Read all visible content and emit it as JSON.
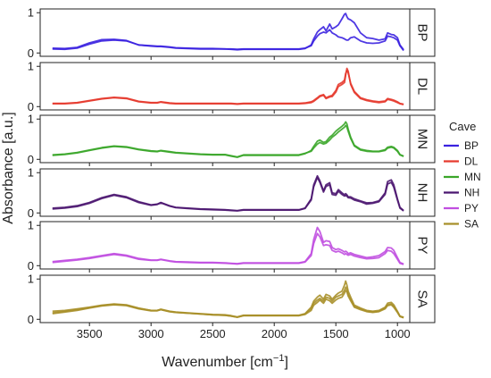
{
  "chart_data": {
    "type": "line",
    "xlabel": "Wavenumber [cm",
    "xlabel_sup": "−1",
    "xlabel_tail": "]",
    "ylabel": "Absorbance [a.u.]",
    "xlim": [
      3900,
      900
    ],
    "ylim": [
      0,
      1
    ],
    "x_ticks": [
      3500,
      3000,
      2500,
      2000,
      1500,
      1000
    ],
    "y_ticks": [
      0,
      1
    ],
    "legend": {
      "title": "Cave",
      "placement": "right"
    },
    "x": [
      3800,
      3700,
      3600,
      3500,
      3400,
      3300,
      3200,
      3100,
      3000,
      2950,
      2920,
      2850,
      2800,
      2700,
      2600,
      2500,
      2400,
      2350,
      2300,
      2250,
      2200,
      2100,
      2000,
      1900,
      1800,
      1750,
      1700,
      1680,
      1650,
      1630,
      1600,
      1580,
      1550,
      1530,
      1500,
      1480,
      1450,
      1430,
      1420,
      1410,
      1400,
      1380,
      1350,
      1300,
      1250,
      1200,
      1150,
      1100,
      1080,
      1050,
      1030,
      1000,
      980,
      950
    ],
    "panels": [
      {
        "name": "BP",
        "color": "#3b22e0",
        "lines": [
          [
            0.1,
            0.09,
            0.12,
            0.22,
            0.3,
            0.32,
            0.3,
            0.2,
            0.17,
            0.16,
            0.16,
            0.14,
            0.12,
            0.11,
            0.1,
            0.1,
            0.1,
            0.09,
            0.08,
            0.09,
            0.09,
            0.09,
            0.09,
            0.09,
            0.09,
            0.11,
            0.2,
            0.35,
            0.52,
            0.58,
            0.65,
            0.55,
            0.72,
            0.6,
            0.65,
            0.7,
            0.85,
            0.96,
            0.98,
            0.9,
            0.85,
            0.82,
            0.75,
            0.5,
            0.38,
            0.36,
            0.32,
            0.35,
            0.5,
            0.46,
            0.45,
            0.38,
            0.2,
            0.08
          ],
          [
            0.12,
            0.11,
            0.14,
            0.25,
            0.33,
            0.34,
            0.31,
            0.2,
            0.18,
            0.17,
            0.17,
            0.15,
            0.13,
            0.12,
            0.11,
            0.11,
            0.1,
            0.1,
            0.09,
            0.1,
            0.1,
            0.1,
            0.1,
            0.1,
            0.1,
            0.12,
            0.18,
            0.3,
            0.42,
            0.48,
            0.52,
            0.5,
            0.58,
            0.5,
            0.45,
            0.4,
            0.38,
            0.35,
            0.33,
            0.32,
            0.32,
            0.38,
            0.4,
            0.3,
            0.25,
            0.24,
            0.25,
            0.3,
            0.42,
            0.4,
            0.38,
            0.32,
            0.18,
            0.06
          ]
        ]
      },
      {
        "name": "DL",
        "color": "#e63a2e",
        "lines": [
          [
            0.07,
            0.07,
            0.09,
            0.14,
            0.19,
            0.22,
            0.2,
            0.12,
            0.09,
            0.09,
            0.11,
            0.08,
            0.07,
            0.07,
            0.07,
            0.07,
            0.07,
            0.07,
            0.06,
            0.07,
            0.07,
            0.07,
            0.07,
            0.07,
            0.07,
            0.08,
            0.1,
            0.13,
            0.2,
            0.25,
            0.28,
            0.2,
            0.24,
            0.25,
            0.36,
            0.5,
            0.55,
            0.6,
            0.78,
            0.95,
            0.88,
            0.55,
            0.35,
            0.2,
            0.15,
            0.12,
            0.1,
            0.12,
            0.18,
            0.16,
            0.14,
            0.1,
            0.07,
            0.05
          ],
          [
            0.08,
            0.08,
            0.1,
            0.15,
            0.2,
            0.23,
            0.21,
            0.13,
            0.1,
            0.1,
            0.12,
            0.09,
            0.08,
            0.08,
            0.08,
            0.08,
            0.08,
            0.08,
            0.07,
            0.08,
            0.08,
            0.08,
            0.08,
            0.08,
            0.08,
            0.09,
            0.12,
            0.15,
            0.22,
            0.27,
            0.3,
            0.22,
            0.26,
            0.28,
            0.4,
            0.55,
            0.6,
            0.66,
            0.82,
            0.9,
            0.84,
            0.58,
            0.38,
            0.22,
            0.17,
            0.14,
            0.12,
            0.14,
            0.2,
            0.18,
            0.16,
            0.12,
            0.08,
            0.06
          ]
        ]
      },
      {
        "name": "MN",
        "color": "#3aa629",
        "lines": [
          [
            0.1,
            0.12,
            0.16,
            0.22,
            0.28,
            0.32,
            0.3,
            0.24,
            0.2,
            0.19,
            0.21,
            0.18,
            0.16,
            0.14,
            0.12,
            0.11,
            0.11,
            0.08,
            0.05,
            0.1,
            0.1,
            0.1,
            0.1,
            0.1,
            0.1,
            0.14,
            0.22,
            0.32,
            0.45,
            0.48,
            0.42,
            0.44,
            0.55,
            0.6,
            0.7,
            0.75,
            0.82,
            0.88,
            0.93,
            0.88,
            0.75,
            0.55,
            0.35,
            0.25,
            0.22,
            0.2,
            0.2,
            0.24,
            0.3,
            0.32,
            0.3,
            0.22,
            0.12,
            0.08
          ],
          [
            0.11,
            0.13,
            0.17,
            0.23,
            0.29,
            0.33,
            0.31,
            0.25,
            0.21,
            0.2,
            0.22,
            0.19,
            0.17,
            0.15,
            0.13,
            0.12,
            0.12,
            0.09,
            0.06,
            0.11,
            0.11,
            0.11,
            0.11,
            0.11,
            0.11,
            0.15,
            0.2,
            0.28,
            0.38,
            0.42,
            0.38,
            0.4,
            0.48,
            0.55,
            0.62,
            0.68,
            0.75,
            0.8,
            0.84,
            0.8,
            0.7,
            0.52,
            0.33,
            0.23,
            0.2,
            0.19,
            0.19,
            0.22,
            0.28,
            0.3,
            0.28,
            0.2,
            0.11,
            0.07
          ]
        ]
      },
      {
        "name": "NH",
        "color": "#4b1670",
        "lines": [
          [
            0.12,
            0.14,
            0.18,
            0.26,
            0.38,
            0.46,
            0.4,
            0.28,
            0.2,
            0.22,
            0.26,
            0.18,
            0.14,
            0.12,
            0.1,
            0.09,
            0.08,
            0.07,
            0.06,
            0.08,
            0.08,
            0.08,
            0.08,
            0.08,
            0.08,
            0.12,
            0.35,
            0.7,
            0.92,
            0.8,
            0.55,
            0.7,
            0.75,
            0.5,
            0.48,
            0.58,
            0.5,
            0.45,
            0.48,
            0.45,
            0.4,
            0.4,
            0.35,
            0.3,
            0.25,
            0.26,
            0.3,
            0.5,
            0.78,
            0.82,
            0.7,
            0.35,
            0.14,
            0.06
          ],
          [
            0.1,
            0.12,
            0.16,
            0.24,
            0.36,
            0.44,
            0.38,
            0.26,
            0.19,
            0.21,
            0.25,
            0.17,
            0.13,
            0.11,
            0.09,
            0.08,
            0.07,
            0.06,
            0.05,
            0.07,
            0.07,
            0.07,
            0.07,
            0.07,
            0.07,
            0.11,
            0.32,
            0.65,
            0.88,
            0.76,
            0.52,
            0.66,
            0.7,
            0.46,
            0.44,
            0.54,
            0.46,
            0.42,
            0.44,
            0.42,
            0.38,
            0.37,
            0.32,
            0.28,
            0.22,
            0.24,
            0.28,
            0.46,
            0.72,
            0.76,
            0.64,
            0.32,
            0.12,
            0.05
          ]
        ]
      },
      {
        "name": "PY",
        "color": "#c04ee0",
        "lines": [
          [
            0.1,
            0.13,
            0.16,
            0.2,
            0.25,
            0.3,
            0.26,
            0.18,
            0.14,
            0.14,
            0.16,
            0.12,
            0.1,
            0.09,
            0.08,
            0.08,
            0.07,
            0.06,
            0.05,
            0.07,
            0.07,
            0.07,
            0.07,
            0.07,
            0.07,
            0.1,
            0.3,
            0.65,
            0.95,
            0.85,
            0.58,
            0.62,
            0.6,
            0.45,
            0.4,
            0.42,
            0.38,
            0.34,
            0.36,
            0.34,
            0.3,
            0.32,
            0.28,
            0.24,
            0.2,
            0.22,
            0.25,
            0.35,
            0.45,
            0.44,
            0.38,
            0.2,
            0.08,
            0.04
          ],
          [
            0.08,
            0.11,
            0.14,
            0.18,
            0.23,
            0.28,
            0.24,
            0.16,
            0.13,
            0.13,
            0.15,
            0.11,
            0.09,
            0.08,
            0.07,
            0.07,
            0.06,
            0.05,
            0.04,
            0.06,
            0.06,
            0.06,
            0.06,
            0.06,
            0.06,
            0.09,
            0.25,
            0.55,
            0.8,
            0.72,
            0.5,
            0.52,
            0.5,
            0.38,
            0.34,
            0.36,
            0.32,
            0.28,
            0.3,
            0.28,
            0.26,
            0.28,
            0.24,
            0.2,
            0.17,
            0.18,
            0.2,
            0.3,
            0.38,
            0.36,
            0.3,
            0.16,
            0.06,
            0.03
          ]
        ]
      },
      {
        "name": "SA",
        "color": "#a8902a",
        "lines": [
          [
            0.2,
            0.22,
            0.26,
            0.3,
            0.35,
            0.38,
            0.36,
            0.28,
            0.22,
            0.22,
            0.25,
            0.2,
            0.18,
            0.16,
            0.14,
            0.12,
            0.11,
            0.09,
            0.06,
            0.1,
            0.1,
            0.1,
            0.1,
            0.1,
            0.1,
            0.14,
            0.3,
            0.45,
            0.55,
            0.6,
            0.5,
            0.62,
            0.58,
            0.5,
            0.6,
            0.65,
            0.7,
            0.85,
            0.95,
            0.85,
            0.7,
            0.55,
            0.35,
            0.28,
            0.22,
            0.2,
            0.22,
            0.3,
            0.4,
            0.42,
            0.36,
            0.2,
            0.08,
            0.05
          ],
          [
            0.14,
            0.18,
            0.22,
            0.28,
            0.33,
            0.36,
            0.34,
            0.26,
            0.21,
            0.21,
            0.24,
            0.19,
            0.17,
            0.15,
            0.13,
            0.11,
            0.1,
            0.08,
            0.05,
            0.09,
            0.09,
            0.09,
            0.09,
            0.09,
            0.09,
            0.13,
            0.26,
            0.4,
            0.48,
            0.52,
            0.45,
            0.55,
            0.52,
            0.45,
            0.55,
            0.58,
            0.62,
            0.72,
            0.8,
            0.75,
            0.62,
            0.5,
            0.32,
            0.26,
            0.2,
            0.18,
            0.2,
            0.28,
            0.36,
            0.38,
            0.32,
            0.18,
            0.07,
            0.04
          ],
          [
            0.16,
            0.2,
            0.24,
            0.29,
            0.34,
            0.37,
            0.35,
            0.27,
            0.22,
            0.22,
            0.24,
            0.19,
            0.17,
            0.15,
            0.13,
            0.11,
            0.1,
            0.08,
            0.05,
            0.09,
            0.09,
            0.09,
            0.09,
            0.09,
            0.09,
            0.12,
            0.22,
            0.35,
            0.42,
            0.48,
            0.4,
            0.5,
            0.46,
            0.4,
            0.48,
            0.52,
            0.55,
            0.65,
            0.72,
            0.68,
            0.58,
            0.46,
            0.3,
            0.24,
            0.19,
            0.17,
            0.19,
            0.26,
            0.34,
            0.36,
            0.3,
            0.17,
            0.07,
            0.04
          ]
        ]
      }
    ]
  }
}
